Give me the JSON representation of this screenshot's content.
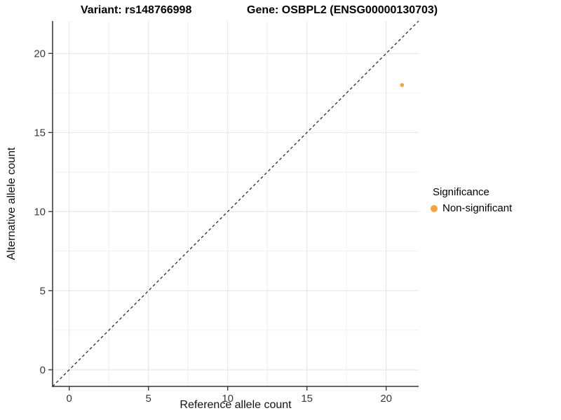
{
  "titles": {
    "variant": "Variant: rs148766998",
    "gene": "Gene: OSBPL2 (ENSG00000130703)"
  },
  "chart_data": {
    "type": "scatter",
    "title_variant": "Variant: rs148766998",
    "title_gene": "Gene: OSBPL2 (ENSG00000130703)",
    "xlabel": "Reference allele count",
    "ylabel": "Alternative allele count",
    "xlim": [
      -1.05,
      22.05
    ],
    "ylim": [
      -1.05,
      22.05
    ],
    "x_ticks": [
      0,
      5,
      10,
      15,
      20
    ],
    "y_ticks": [
      0,
      5,
      10,
      15,
      20
    ],
    "x_minor": [
      2.5,
      7.5,
      12.5,
      17.5
    ],
    "y_minor": [
      2.5,
      7.5,
      12.5,
      17.5
    ],
    "grid": true,
    "legend_position": "right",
    "legend": {
      "title": "Significance",
      "items": [
        {
          "label": "Non-significant",
          "color": "#FDA233"
        }
      ]
    },
    "series": [
      {
        "name": "Non-significant",
        "color": "#FDA233",
        "points": [
          {
            "x": 21,
            "y": 18
          }
        ]
      }
    ],
    "reference_line": {
      "type": "identity",
      "slope": 1,
      "intercept": 0,
      "style": "dashed",
      "color": "#1a1a1a"
    }
  },
  "colors": {
    "point_orange": "#FDA233",
    "axis_line": "#333333",
    "tick_label": "#383838",
    "grid_major": "#E4E4E4",
    "grid_minor": "#F0F0F0",
    "background": "#FFFFFF"
  }
}
